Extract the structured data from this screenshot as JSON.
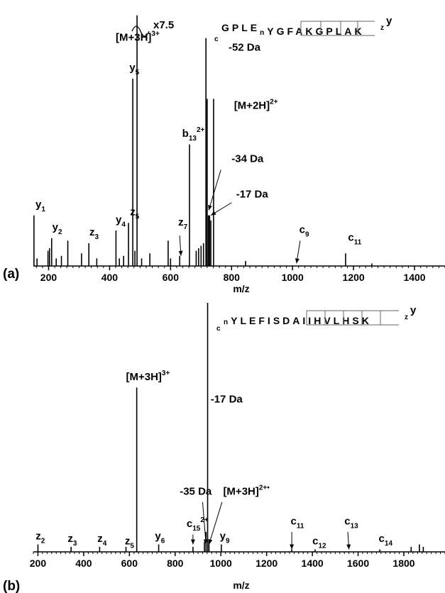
{
  "chart_data": [
    {
      "type": "bar",
      "panel_label": "(a)",
      "xlabel": "m/z",
      "xlim": [
        150,
        1500
      ],
      "x_ticks": [
        "200",
        "400",
        "600",
        "800",
        "1000",
        "1200",
        "1400"
      ],
      "x_tick_values": [
        200,
        400,
        600,
        800,
        1000,
        1200,
        1400
      ],
      "ylim": [
        0,
        100
      ],
      "scale_marker": "x7.5",
      "sequence": {
        "prefix": "c",
        "residues": [
          "G",
          "P",
          "L",
          "E",
          "n",
          "Y",
          "G",
          "F",
          "A",
          "K",
          "G",
          "P",
          "L",
          "A",
          "K"
        ],
        "suffix_z": "z",
        "suffix_y": "y"
      },
      "peaks": [
        {
          "x": 152,
          "y": 20
        },
        {
          "x": 162,
          "y": 3
        },
        {
          "x": 198,
          "y": 6
        },
        {
          "x": 203,
          "y": 7
        },
        {
          "x": 210,
          "y": 11
        },
        {
          "x": 225,
          "y": 3
        },
        {
          "x": 242,
          "y": 4
        },
        {
          "x": 263,
          "y": 10
        },
        {
          "x": 308,
          "y": 5
        },
        {
          "x": 332,
          "y": 9
        },
        {
          "x": 358,
          "y": 3
        },
        {
          "x": 421,
          "y": 14
        },
        {
          "x": 432,
          "y": 3
        },
        {
          "x": 446,
          "y": 4
        },
        {
          "x": 462,
          "y": 17
        },
        {
          "x": 476,
          "y": 74
        },
        {
          "x": 483,
          "y": 6
        },
        {
          "x": 490,
          "y": 99
        },
        {
          "x": 505,
          "y": 3
        },
        {
          "x": 532,
          "y": 5
        },
        {
          "x": 592,
          "y": 10
        },
        {
          "x": 600,
          "y": 3
        },
        {
          "x": 630,
          "y": 4
        },
        {
          "x": 662,
          "y": 48
        },
        {
          "x": 684,
          "y": 6
        },
        {
          "x": 692,
          "y": 7
        },
        {
          "x": 700,
          "y": 8
        },
        {
          "x": 708,
          "y": 9
        },
        {
          "x": 716,
          "y": 90
        },
        {
          "x": 720,
          "y": 66
        },
        {
          "x": 724,
          "y": 20
        },
        {
          "x": 728,
          "y": 20
        },
        {
          "x": 732,
          "y": 18
        },
        {
          "x": 741,
          "y": 66
        },
        {
          "x": 846,
          "y": 2
        },
        {
          "x": 1174,
          "y": 5
        },
        {
          "x": 1260,
          "y": 1
        }
      ],
      "labels": [
        {
          "text": "y",
          "sub": "1",
          "x": 157,
          "y": 23
        },
        {
          "text": "y",
          "sub": "2",
          "x": 212,
          "y": 14
        },
        {
          "text": "z",
          "sub": "3",
          "x": 334,
          "y": 12
        },
        {
          "text": "y",
          "sub": "4",
          "x": 420,
          "y": 17
        },
        {
          "text": "z",
          "sub": "5",
          "x": 467,
          "y": 20
        },
        {
          "text": "y",
          "sub": "5",
          "x": 465,
          "y": 77
        },
        {
          "text": "[M+3H]",
          "sup": "3+",
          "x": 420,
          "y": 89
        },
        {
          "text": "b",
          "sub": "13",
          "sup": "2+",
          "x": 638,
          "y": 51
        },
        {
          "text": "z",
          "sub": "7",
          "x": 625,
          "y": 16
        },
        {
          "text": "-52 Da",
          "x": 790,
          "y": 85
        },
        {
          "text": "[M+2H]",
          "sup": "2+",
          "x": 808,
          "y": 62
        },
        {
          "text": "-34 Da",
          "x": 800,
          "y": 41
        },
        {
          "text": "-17 Da",
          "x": 815,
          "y": 27
        },
        {
          "text": "c",
          "sub": "9",
          "x": 1022,
          "y": 13
        },
        {
          "text": "c",
          "sub": "11",
          "x": 1182,
          "y": 10
        }
      ],
      "arrows": [
        {
          "from_x": 630,
          "from_y": 12,
          "to_x": 634,
          "to_y": 4
        },
        {
          "from_x": 765,
          "from_y": 38,
          "to_x": 725,
          "to_y": 22
        },
        {
          "from_x": 800,
          "from_y": 25,
          "to_x": 732,
          "to_y": 20
        },
        {
          "from_x": 1025,
          "from_y": 10,
          "to_x": 1013,
          "to_y": 1
        }
      ]
    },
    {
      "type": "bar",
      "panel_label": "(b)",
      "xlabel": "m/z",
      "xlim": [
        180,
        1980
      ],
      "x_ticks": [
        "200",
        "400",
        "600",
        "800",
        "1000",
        "1200",
        "1400",
        "1600",
        "1800"
      ],
      "x_tick_values": [
        200,
        400,
        600,
        800,
        1000,
        1200,
        1400,
        1600,
        1800
      ],
      "ylim": [
        0,
        100
      ],
      "sequence": {
        "prefix": "c",
        "residues": [
          "n",
          "Y",
          "L",
          "E",
          "F",
          "I",
          "S",
          "D",
          "A",
          "I",
          "I",
          "H",
          "V",
          "L",
          "H",
          "S",
          "K"
        ],
        "suffix_z": "z",
        "suffix_y": "y"
      },
      "peaks": [
        {
          "x": 200,
          "y": 3
        },
        {
          "x": 345,
          "y": 2
        },
        {
          "x": 470,
          "y": 2
        },
        {
          "x": 585,
          "y": 2
        },
        {
          "x": 632,
          "y": 66
        },
        {
          "x": 728,
          "y": 3
        },
        {
          "x": 878,
          "y": 2
        },
        {
          "x": 928,
          "y": 4
        },
        {
          "x": 935,
          "y": 8
        },
        {
          "x": 942,
          "y": 100
        },
        {
          "x": 948,
          "y": 5
        },
        {
          "x": 1002,
          "y": 3
        },
        {
          "x": 1310,
          "y": 1
        },
        {
          "x": 1412,
          "y": 1
        },
        {
          "x": 1695,
          "y": 1
        },
        {
          "x": 1832,
          "y": 2
        },
        {
          "x": 1868,
          "y": 3
        },
        {
          "x": 1885,
          "y": 2
        }
      ],
      "labels": [
        {
          "text": "z",
          "sub": "2",
          "x": 190,
          "y": 5
        },
        {
          "text": "z",
          "sub": "3",
          "x": 330,
          "y": 4
        },
        {
          "text": "z",
          "sub": "4",
          "x": 460,
          "y": 4
        },
        {
          "text": "z",
          "sub": "5",
          "x": 580,
          "y": 3
        },
        {
          "text": "y",
          "sub": "6",
          "x": 712,
          "y": 5
        },
        {
          "text": "y",
          "sub": "9",
          "x": 995,
          "y": 5
        },
        {
          "text": "[M+3H]",
          "sup": "3+",
          "x": 585,
          "y": 69
        },
        {
          "text": "-17 Da",
          "x": 955,
          "y": 60
        },
        {
          "text": "-35 Da",
          "x": 820,
          "y": 23
        },
        {
          "text": "[M+3H]",
          "sup": "2+•",
          "x": 1010,
          "y": 23
        },
        {
          "text": "c",
          "sub": "15",
          "sup": "2+",
          "x": 850,
          "y": 10
        },
        {
          "text": "c",
          "sub": "11",
          "x": 1305,
          "y": 11
        },
        {
          "text": "c",
          "sub": "12",
          "x": 1400,
          "y": 3
        },
        {
          "text": "c",
          "sub": "13",
          "x": 1540,
          "y": 11
        },
        {
          "text": "c",
          "sub": "14",
          "x": 1690,
          "y": 4
        }
      ],
      "arrows": [
        {
          "from_x": 920,
          "from_y": 20,
          "to_x": 935,
          "to_y": 3
        },
        {
          "from_x": 1005,
          "from_y": 20,
          "to_x": 948,
          "to_y": 3
        },
        {
          "from_x": 878,
          "from_y": 7,
          "to_x": 878,
          "to_y": 3
        },
        {
          "from_x": 1310,
          "from_y": 8,
          "to_x": 1310,
          "to_y": 1
        },
        {
          "from_x": 1555,
          "from_y": 8,
          "to_x": 1560,
          "to_y": 1
        }
      ]
    }
  ]
}
